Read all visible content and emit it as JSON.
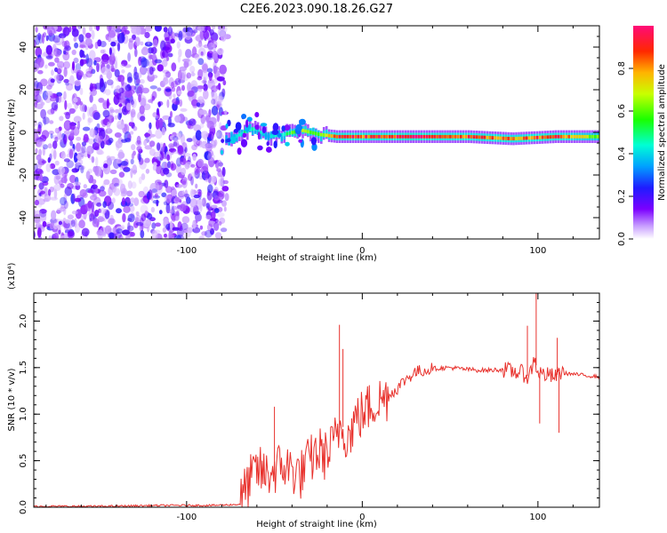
{
  "title": "C2E6.2023.090.18.26.G27",
  "colorbar": {
    "label": "Normalized spectral amplitude",
    "range": [
      0,
      1
    ],
    "ticks": [
      "0.0",
      "0.2",
      "0.4",
      "0.6",
      "0.8"
    ],
    "tick_values": [
      0.0,
      0.2,
      0.4,
      0.6,
      0.8
    ]
  },
  "chart_data": [
    {
      "type": "heatmap",
      "xlabel": "Height of straight line (km)",
      "ylabel": "Frequency (Hz)",
      "xlim": [
        -187,
        135
      ],
      "ylim": [
        -50,
        50
      ],
      "xticks": [
        -100,
        0,
        100
      ],
      "xtick_labels": [
        "-100",
        "0",
        "100"
      ],
      "yticks": [
        -40,
        -20,
        0,
        20,
        40
      ],
      "ytick_labels": [
        "-40",
        "-20",
        "0",
        "20",
        "40"
      ],
      "noise_region_x": [
        -187,
        -78
      ],
      "signal_track": [
        {
          "x": -78,
          "freq": -4,
          "amp": 0.3
        },
        {
          "x": -70,
          "freq": -1,
          "amp": 0.5
        },
        {
          "x": -62,
          "freq": 2,
          "amp": 0.45
        },
        {
          "x": -55,
          "freq": -2,
          "amp": 0.4
        },
        {
          "x": -45,
          "freq": -1,
          "amp": 0.5
        },
        {
          "x": -35,
          "freq": 1,
          "amp": 0.75
        },
        {
          "x": -25,
          "freq": -1,
          "amp": 0.6
        },
        {
          "x": -15,
          "freq": -2,
          "amp": 0.95
        },
        {
          "x": 0,
          "freq": -2,
          "amp": 0.9
        },
        {
          "x": 30,
          "freq": -2,
          "amp": 1.0
        },
        {
          "x": 60,
          "freq": -2,
          "amp": 0.9
        },
        {
          "x": 85,
          "freq": -3,
          "amp": 0.85
        },
        {
          "x": 110,
          "freq": -2,
          "amp": 0.95
        },
        {
          "x": 135,
          "freq": -2,
          "amp": 0.6
        }
      ]
    },
    {
      "type": "line",
      "xlabel": "Height of straight line (km)",
      "ylabel": "SNR (10 * v/v)",
      "y_multiplier_label": "(x10⁴)",
      "xlim": [
        -187,
        135
      ],
      "ylim": [
        0,
        2.3
      ],
      "xticks": [
        -100,
        0,
        100
      ],
      "xtick_labels": [
        "-100",
        "0",
        "100"
      ],
      "yticks": [
        0.0,
        0.5,
        1.0,
        1.5,
        2.0
      ],
      "ytick_labels": [
        "0.0",
        "0.5",
        "1.0",
        "1.5",
        "2.0"
      ],
      "series": [
        {
          "color": "#e8322d",
          "x": [
            -187,
            -150,
            -110,
            -85,
            -70,
            -65,
            -60,
            -55,
            -50,
            -45,
            -40,
            -35,
            -30,
            -25,
            -20,
            -16,
            -12,
            -8,
            -4,
            0,
            5,
            10,
            15,
            20,
            25,
            30,
            40,
            50,
            60,
            70,
            80,
            85,
            90,
            95,
            98,
            100,
            105,
            110,
            112,
            115,
            120,
            130,
            135
          ],
          "y": [
            0.01,
            0.01,
            0.02,
            0.02,
            0.03,
            0.25,
            0.4,
            0.35,
            0.4,
            0.45,
            0.4,
            0.35,
            0.5,
            0.6,
            0.55,
            0.7,
            0.9,
            0.75,
            0.95,
            1.0,
            1.1,
            1.15,
            1.2,
            1.28,
            1.38,
            1.45,
            1.49,
            1.5,
            1.48,
            1.47,
            1.48,
            1.46,
            1.45,
            1.4,
            1.6,
            1.45,
            1.42,
            1.4,
            1.45,
            1.44,
            1.43,
            1.41,
            1.4
          ]
        }
      ],
      "spikes": [
        {
          "x": -50,
          "y": 1.08
        },
        {
          "x": -13,
          "y": 1.96
        },
        {
          "x": -11,
          "y": 1.7
        },
        {
          "x": 94,
          "y": 1.95
        },
        {
          "x": 99,
          "y": 2.3
        },
        {
          "x": 101,
          "y": 0.9
        },
        {
          "x": 111,
          "y": 1.82
        },
        {
          "x": 112,
          "y": 0.8
        }
      ]
    }
  ]
}
